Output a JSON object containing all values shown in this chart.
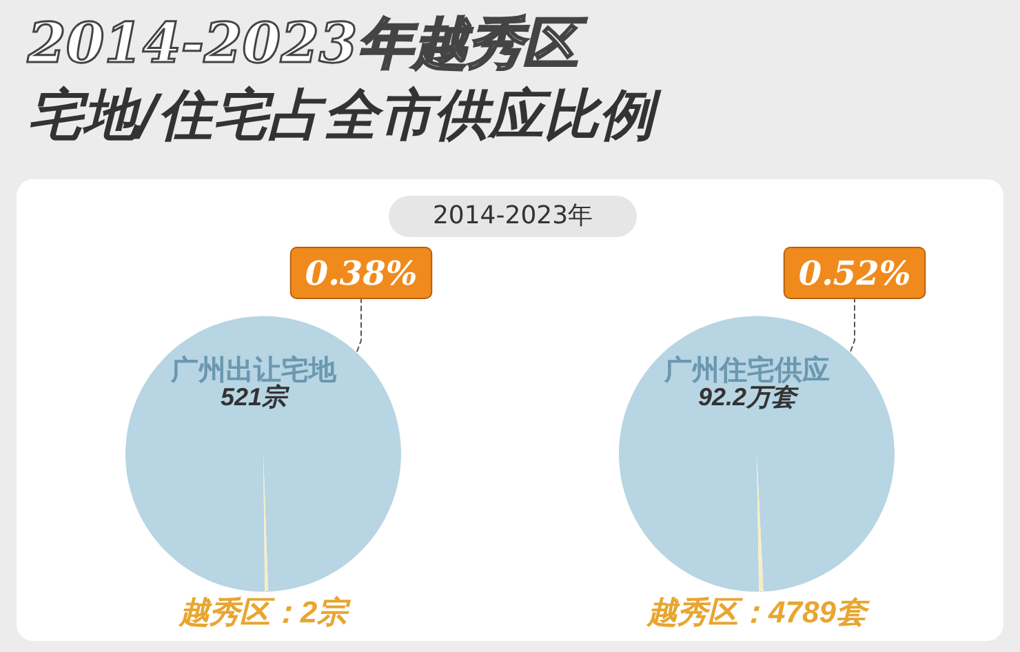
{
  "chart_data": [
    {
      "type": "pie",
      "title": "2014-2023年越秀区宅地/住宅占全市供应比例",
      "subtitle": "2014-2023年",
      "categories": [
        "广州出让宅地",
        "越秀区：2宗"
      ],
      "values": [
        99.62,
        0.38
      ],
      "colors": [
        "#b7d5e3",
        "#f6eec4"
      ],
      "value_labels": [
        null,
        "0.38%"
      ],
      "annotations": [
        "521宗"
      ]
    },
    {
      "type": "pie",
      "categories": [
        "广州住宅供应",
        "越秀区：4789套"
      ],
      "values": [
        99.48,
        0.52
      ],
      "colors": [
        "#b7d5e3",
        "#f6eec4"
      ],
      "value_labels": [
        null,
        "0.52%"
      ],
      "annotations": [
        "92.2万套"
      ]
    }
  ]
}
